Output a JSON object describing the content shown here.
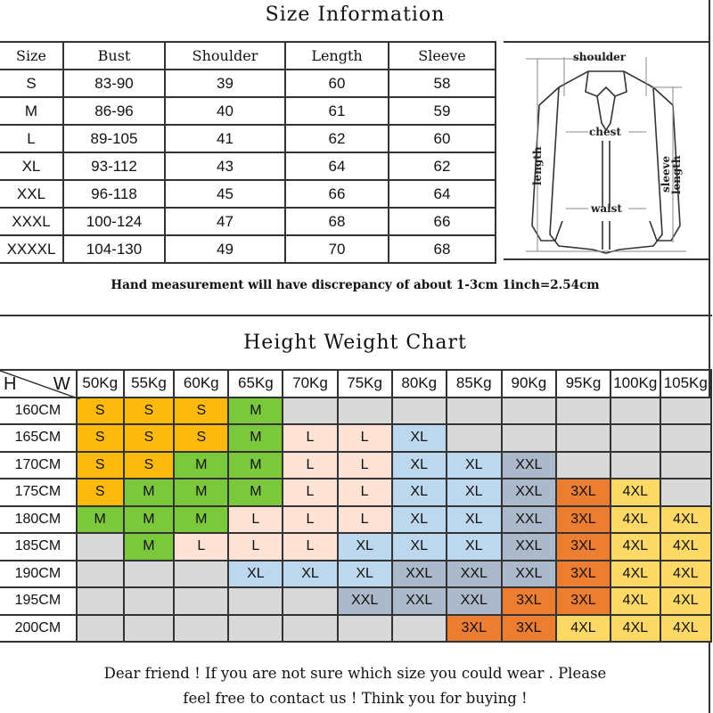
{
  "size_info": {
    "title": "Size Information",
    "headers": [
      "Size",
      "Bust",
      "Shoulder",
      "Length",
      "Sleeve"
    ],
    "rows": [
      [
        "S",
        "83-90",
        "39",
        "60",
        "58"
      ],
      [
        "M",
        "86-96",
        "40",
        "61",
        "59"
      ],
      [
        "L",
        "89-105",
        "41",
        "62",
        "60"
      ],
      [
        "XL",
        "93-112",
        "43",
        "64",
        "62"
      ],
      [
        "XXL",
        "96-118",
        "45",
        "66",
        "64"
      ],
      [
        "XXXL",
        "100-124",
        "47",
        "68",
        "66"
      ],
      [
        "XXXXL",
        "104-130",
        "49",
        "70",
        "68"
      ]
    ],
    "diagram_labels": {
      "shoulder": "shoulder",
      "chest": "chest",
      "waist": "waist",
      "length": "length",
      "sleeve": "sleeve",
      "sleeve_length": "length"
    },
    "note": "Hand measurement will have discrepancy of about 1-3cm  1inch=2.54cm"
  },
  "height_weight": {
    "title": "Height Weight Chart",
    "corner_h": "H",
    "corner_w": "W",
    "weights": [
      "50Kg",
      "55Kg",
      "60Kg",
      "65Kg",
      "70Kg",
      "75Kg",
      "80Kg",
      "85Kg",
      "90Kg",
      "95Kg",
      "100Kg",
      "105Kg"
    ],
    "rows": [
      {
        "height": "160CM",
        "sizes": [
          "S",
          "S",
          "S",
          "M",
          "",
          "",
          "",
          "",
          "",
          "",
          "",
          ""
        ]
      },
      {
        "height": "165CM",
        "sizes": [
          "S",
          "S",
          "S",
          "M",
          "L",
          "L",
          "XL",
          "",
          "",
          "",
          "",
          ""
        ]
      },
      {
        "height": "170CM",
        "sizes": [
          "S",
          "S",
          "M",
          "M",
          "L",
          "L",
          "XL",
          "XL",
          "XXL",
          "",
          "",
          ""
        ]
      },
      {
        "height": "175CM",
        "sizes": [
          "S",
          "M",
          "M",
          "M",
          "L",
          "L",
          "XL",
          "XL",
          "XXL",
          "3XL",
          "4XL",
          ""
        ]
      },
      {
        "height": "180CM",
        "sizes": [
          "M",
          "M",
          "M",
          "L",
          "L",
          "L",
          "XL",
          "XL",
          "XXL",
          "3XL",
          "4XL",
          "4XL"
        ]
      },
      {
        "height": "185CM",
        "sizes": [
          "",
          "M",
          "L",
          "L",
          "L",
          "XL",
          "XL",
          "XL",
          "XXL",
          "3XL",
          "4XL",
          "4XL"
        ]
      },
      {
        "height": "190CM",
        "sizes": [
          "",
          "",
          "",
          "XL",
          "XL",
          "XL",
          "XXL",
          "XXL",
          "XXL",
          "3XL",
          "4XL",
          "4XL"
        ]
      },
      {
        "height": "195CM",
        "sizes": [
          "",
          "",
          "",
          "",
          "",
          "XXL",
          "XXL",
          "XXL",
          "3XL",
          "3XL",
          "4XL",
          "4XL"
        ]
      },
      {
        "height": "200CM",
        "sizes": [
          "",
          "",
          "",
          "",
          "",
          "",
          "",
          "3XL",
          "3XL",
          "4XL",
          "4XL",
          "4XL"
        ]
      }
    ],
    "colors": {
      "S": "#fdba0d",
      "M": "#7bc83c",
      "L": "#fde2d5",
      "XL": "#bdd7ef",
      "XXL": "#acb9ca",
      "3XL": "#ed7d31",
      "4XL": "#ffd966",
      "empty": "#d9d9d9"
    }
  },
  "footer": {
    "line1": "Dear friend ! If you are not sure which size you could wear . Please",
    "line2": "feel free to contact us ! Think you for buying !"
  }
}
